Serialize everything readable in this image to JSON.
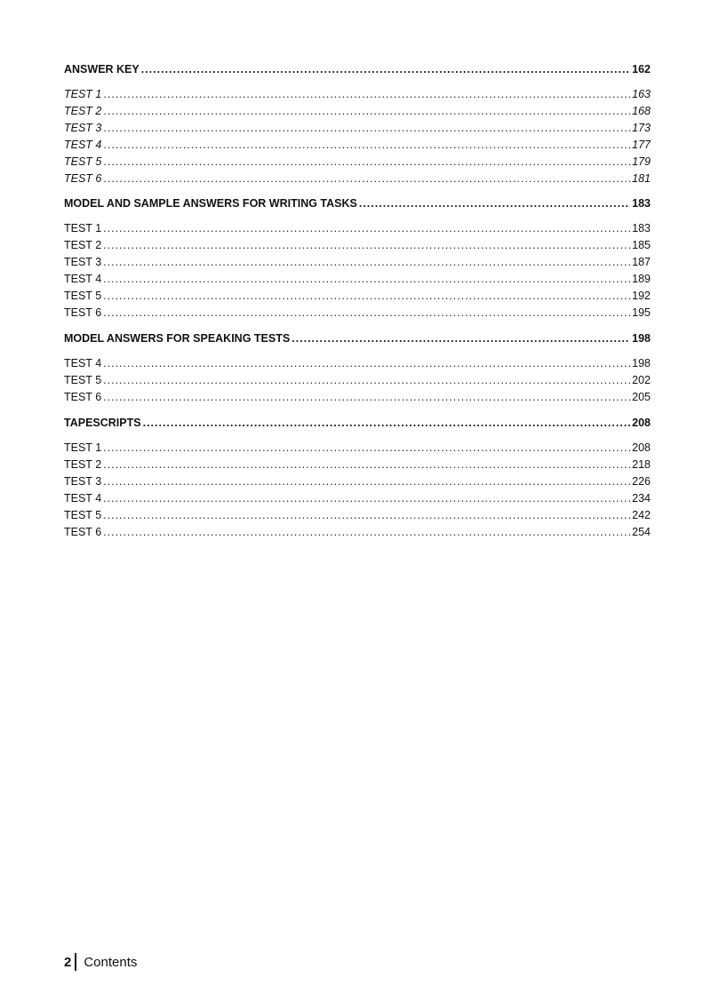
{
  "sections": [
    {
      "title": "ANSWER KEY",
      "page": "162",
      "italic": true,
      "items": [
        {
          "label": "TEST 1",
          "page": "163"
        },
        {
          "label": "TEST 2",
          "page": "168"
        },
        {
          "label": "TEST 3",
          "page": "173"
        },
        {
          "label": "TEST 4",
          "page": "177"
        },
        {
          "label": "TEST 5",
          "page": "179"
        },
        {
          "label": "TEST 6",
          "page": "181"
        }
      ]
    },
    {
      "title": "MODEL AND SAMPLE ANSWERS FOR WRITING TASKS",
      "page": "183",
      "italic": false,
      "items": [
        {
          "label": "TEST 1",
          "page": "183"
        },
        {
          "label": "TEST 2",
          "page": "185"
        },
        {
          "label": "TEST 3",
          "page": "187"
        },
        {
          "label": "TEST 4",
          "page": "189"
        },
        {
          "label": "TEST 5",
          "page": "192"
        },
        {
          "label": "TEST 6",
          "page": "195"
        }
      ]
    },
    {
      "title": "MODEL ANSWERS FOR SPEAKING TESTS",
      "page": "198",
      "italic": false,
      "items": [
        {
          "label": "TEST 4",
          "page": "198"
        },
        {
          "label": "TEST 5",
          "page": "202"
        },
        {
          "label": "TEST 6",
          "page": "205"
        }
      ]
    },
    {
      "title": "TAPESCRIPTS",
      "page": "208",
      "italic": false,
      "items": [
        {
          "label": "TEST 1",
          "page": "208"
        },
        {
          "label": "TEST 2",
          "page": "218"
        },
        {
          "label": "TEST 3",
          "page": "226"
        },
        {
          "label": "TEST 4",
          "page": "234"
        },
        {
          "label": "TEST 5",
          "page": "242"
        },
        {
          "label": "TEST 6",
          "page": "254"
        }
      ]
    }
  ],
  "footer": {
    "page_number": "2",
    "title": "Contents"
  }
}
